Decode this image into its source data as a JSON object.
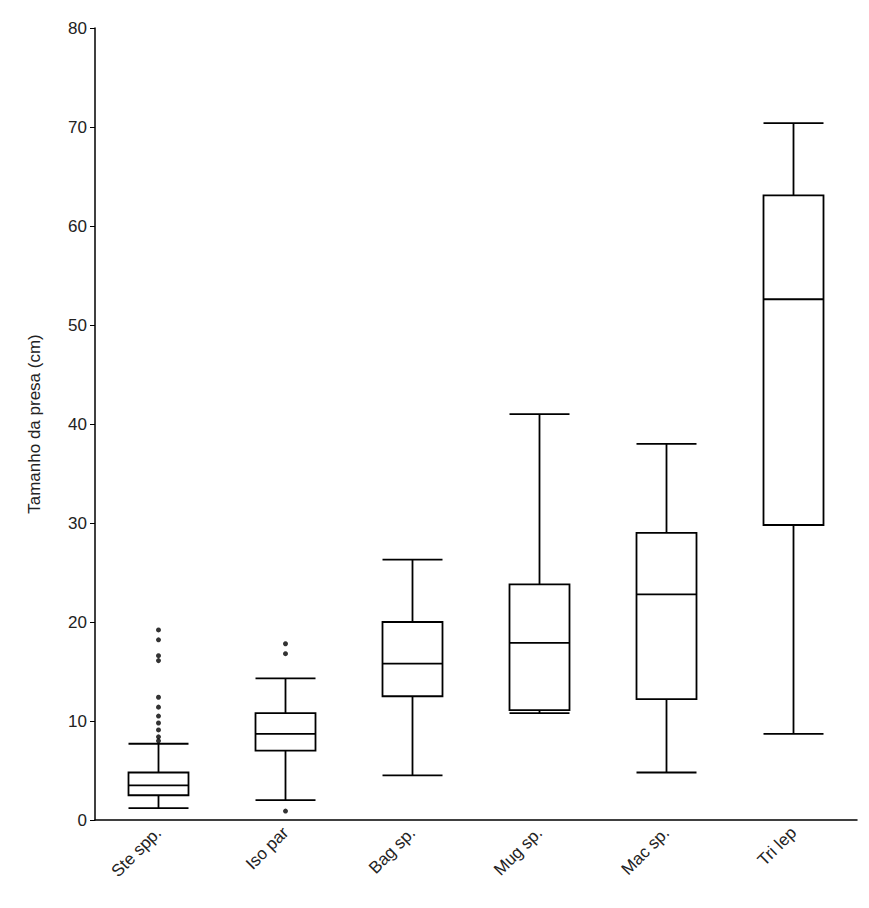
{
  "chart_data": {
    "type": "boxplot",
    "y_label": "Tamanho da presa (cm)",
    "categories": [
      "Ste spp.",
      "Iso par",
      "Bag sp.",
      "Mug sp.",
      "Mac sp.",
      "Tri lep"
    ],
    "values": [
      [
        1.2,
        2.5,
        3.5,
        4.8,
        7.7
      ],
      [
        2.0,
        7.0,
        8.7,
        10.8,
        14.3
      ],
      [
        4.5,
        12.5,
        15.8,
        20.0,
        26.3
      ],
      [
        10.8,
        11.1,
        17.9,
        23.8,
        41.0
      ],
      [
        4.8,
        12.2,
        22.8,
        29.0,
        38.0
      ],
      [
        8.7,
        29.8,
        52.6,
        63.1,
        70.4
      ]
    ],
    "outliers": [
      [
        8.0,
        8.4,
        9.1,
        9.8,
        10.5,
        11.4,
        12.4,
        16.1,
        16.6,
        18.2,
        19.2
      ],
      [
        0.9,
        16.8,
        17.8
      ],
      [],
      [],
      [],
      []
    ],
    "color": "#000000",
    "ylim": [
      0,
      80
    ],
    "yticks": [
      0,
      10,
      20,
      30,
      40,
      50,
      60,
      70,
      80
    ],
    "grid": false
  }
}
